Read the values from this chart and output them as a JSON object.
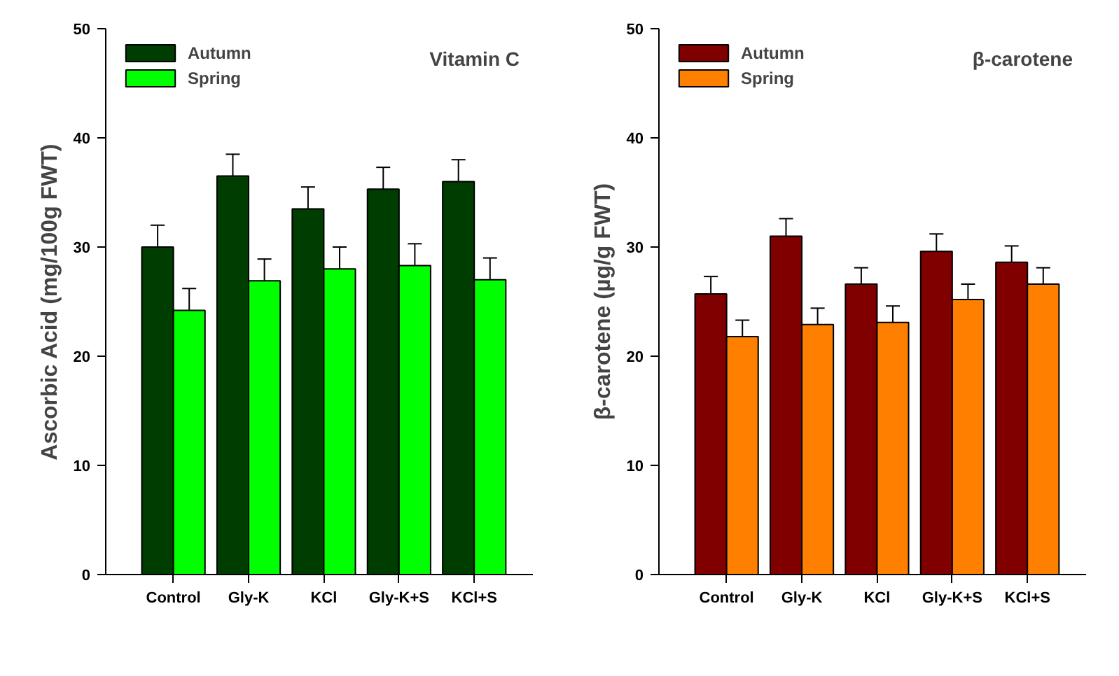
{
  "chart_data": [
    {
      "type": "bar",
      "title": "Vitamin C",
      "ylabel": "Ascorbic Acid (mg/100g FWT)",
      "categories": [
        "Control",
        "Gly-K",
        "KCl",
        "Gly-K+S",
        "KCl+S"
      ],
      "series": [
        {
          "name": "Autumn",
          "color": "#003d00",
          "values": [
            30,
            36.5,
            33.5,
            35.3,
            36
          ],
          "errors": [
            2,
            2,
            2,
            2,
            2
          ]
        },
        {
          "name": "Spring",
          "color": "#00ff00",
          "values": [
            24.2,
            26.9,
            28,
            28.3,
            27
          ],
          "errors": [
            2,
            2,
            2,
            2,
            2
          ]
        }
      ],
      "ylim": [
        0,
        50
      ],
      "yticks": [
        0,
        10,
        20,
        30,
        40,
        50
      ],
      "legend": "top left",
      "grid": false
    },
    {
      "type": "bar",
      "title": "β-carotene",
      "ylabel": "β-carotene (µg/g FWT)",
      "categories": [
        "Control",
        "Gly-K",
        "KCl",
        "Gly-K+S",
        "KCl+S"
      ],
      "series": [
        {
          "name": "Autumn",
          "color": "#800000",
          "values": [
            25.7,
            31,
            26.6,
            29.6,
            28.6
          ],
          "errors": [
            1.6,
            1.6,
            1.5,
            1.6,
            1.5
          ]
        },
        {
          "name": "Spring",
          "color": "#ff8000",
          "values": [
            21.8,
            22.9,
            23.1,
            25.2,
            26.6
          ],
          "errors": [
            1.5,
            1.5,
            1.5,
            1.4,
            1.5
          ]
        }
      ],
      "ylim": [
        0,
        50
      ],
      "yticks": [
        0,
        10,
        20,
        30,
        40,
        50
      ],
      "legend": "top left",
      "grid": false
    }
  ]
}
